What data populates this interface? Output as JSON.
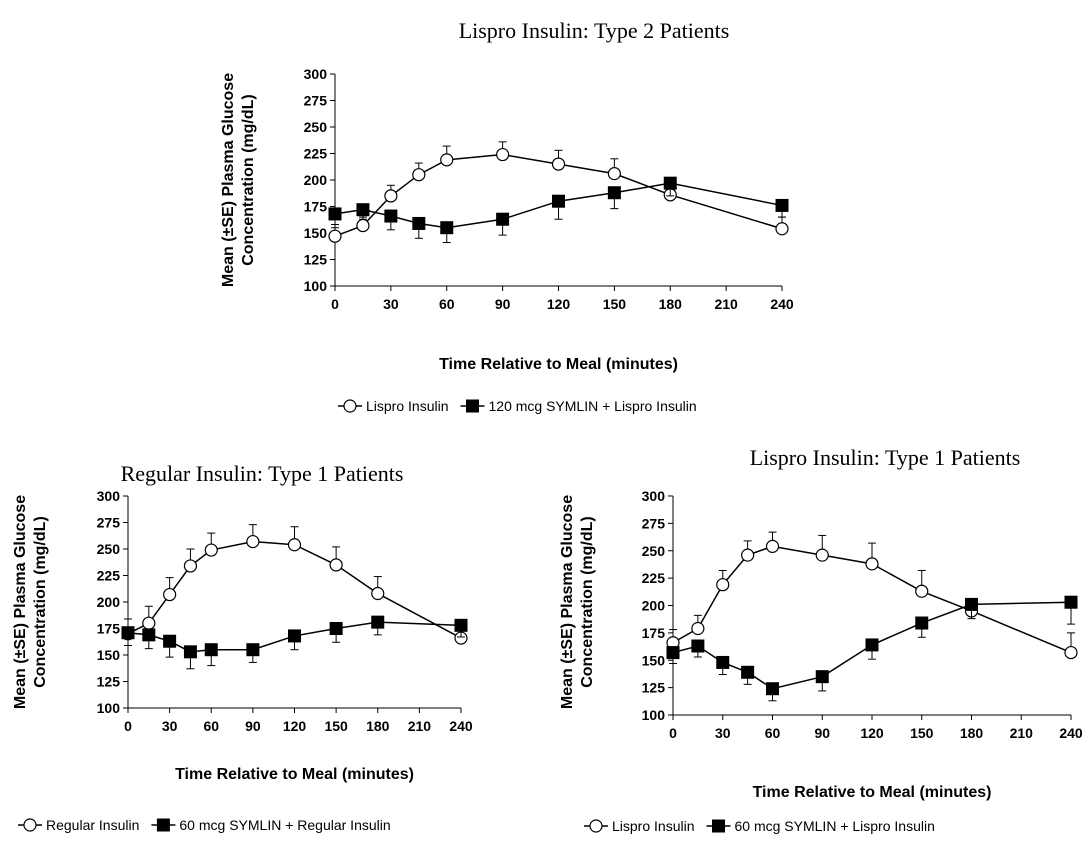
{
  "chart_data": [
    {
      "type": "line",
      "title": "Lispro Insulin:  Type 2 Patients",
      "xlabel": "Time Relative to Meal (minutes)",
      "ylabel_lines": [
        "Mean (±SE) Plasma Glucose",
        "Concentration (mg/dL)"
      ],
      "xlim": [
        0,
        240
      ],
      "ylim": [
        100,
        300
      ],
      "x_ticks": [
        0,
        30,
        60,
        90,
        120,
        150,
        180,
        210,
        240
      ],
      "y_ticks": [
        100,
        125,
        150,
        175,
        200,
        225,
        250,
        275,
        300
      ],
      "grid": false,
      "legend_position": "bottom",
      "series": [
        {
          "name": "Lispro Insulin",
          "marker": "open-circle",
          "x": [
            0,
            15,
            30,
            45,
            60,
            90,
            120,
            150,
            180,
            240
          ],
          "y": [
            147,
            157,
            185,
            205,
            219,
            224,
            215,
            206,
            186,
            154
          ],
          "se": [
            8,
            8,
            10,
            11,
            13,
            12,
            13,
            14,
            8,
            11
          ]
        },
        {
          "name": "120 mcg SYMLIN + Lispro Insulin",
          "marker": "filled-square",
          "x": [
            0,
            15,
            30,
            45,
            60,
            90,
            120,
            150,
            180,
            240
          ],
          "y": [
            168,
            172,
            166,
            159,
            155,
            163,
            180,
            188,
            197,
            176
          ],
          "se": [
            10,
            9,
            13,
            14,
            14,
            15,
            17,
            15,
            12,
            11
          ]
        }
      ]
    },
    {
      "type": "line",
      "title": "Regular Insulin:  Type 1 Patients",
      "xlabel": "Time Relative to Meal (minutes)",
      "ylabel_lines": [
        "Mean (±SE) Plasma Glucose",
        "Concentration (mg/dL)"
      ],
      "xlim": [
        0,
        240
      ],
      "ylim": [
        100,
        300
      ],
      "x_ticks": [
        0,
        30,
        60,
        90,
        120,
        150,
        180,
        210,
        240
      ],
      "y_ticks": [
        100,
        125,
        150,
        175,
        200,
        225,
        250,
        275,
        300
      ],
      "grid": false,
      "legend_position": "bottom",
      "series": [
        {
          "name": "Regular Insulin",
          "marker": "open-circle",
          "x": [
            0,
            15,
            30,
            45,
            60,
            90,
            120,
            150,
            180,
            240
          ],
          "y": [
            170,
            180,
            207,
            234,
            249,
            257,
            254,
            235,
            208,
            166
          ],
          "se": [
            14,
            16,
            16,
            16,
            16,
            16,
            17,
            17,
            16,
            8
          ]
        },
        {
          "name": "60 mcg SYMLIN + Regular Insulin",
          "marker": "filled-square",
          "x": [
            0,
            15,
            30,
            45,
            60,
            90,
            120,
            150,
            180,
            240
          ],
          "y": [
            171,
            169,
            163,
            153,
            155,
            155,
            168,
            175,
            181,
            178
          ],
          "se": [
            12,
            13,
            15,
            16,
            15,
            12,
            13,
            13,
            12,
            11
          ]
        }
      ]
    },
    {
      "type": "line",
      "title": "Lispro Insulin:  Type 1 Patients",
      "xlabel": "Time Relative to Meal (minutes)",
      "ylabel_lines": [
        "Mean (±SE) Plasma Glucose",
        "Concentration (mg/dL)"
      ],
      "xlim": [
        0,
        240
      ],
      "ylim": [
        100,
        300
      ],
      "x_ticks": [
        0,
        30,
        60,
        90,
        120,
        150,
        180,
        210,
        240
      ],
      "y_ticks": [
        100,
        125,
        150,
        175,
        200,
        225,
        250,
        275,
        300
      ],
      "grid": false,
      "legend_position": "bottom",
      "series": [
        {
          "name": "Lispro Insulin",
          "marker": "open-circle",
          "x": [
            0,
            15,
            30,
            45,
            60,
            90,
            120,
            150,
            180,
            240
          ],
          "y": [
            166,
            179,
            219,
            246,
            254,
            246,
            238,
            213,
            195,
            157
          ],
          "se": [
            12,
            12,
            13,
            13,
            13,
            18,
            19,
            19,
            10,
            18
          ]
        },
        {
          "name": "60 mcg SYMLIN + Lispro Insulin",
          "marker": "filled-square",
          "x": [
            0,
            15,
            30,
            45,
            60,
            90,
            120,
            150,
            180,
            240
          ],
          "y": [
            157,
            163,
            148,
            139,
            124,
            135,
            164,
            184,
            201,
            203
          ],
          "se": [
            10,
            10,
            11,
            11,
            11,
            13,
            13,
            13,
            13,
            20
          ]
        }
      ]
    }
  ]
}
